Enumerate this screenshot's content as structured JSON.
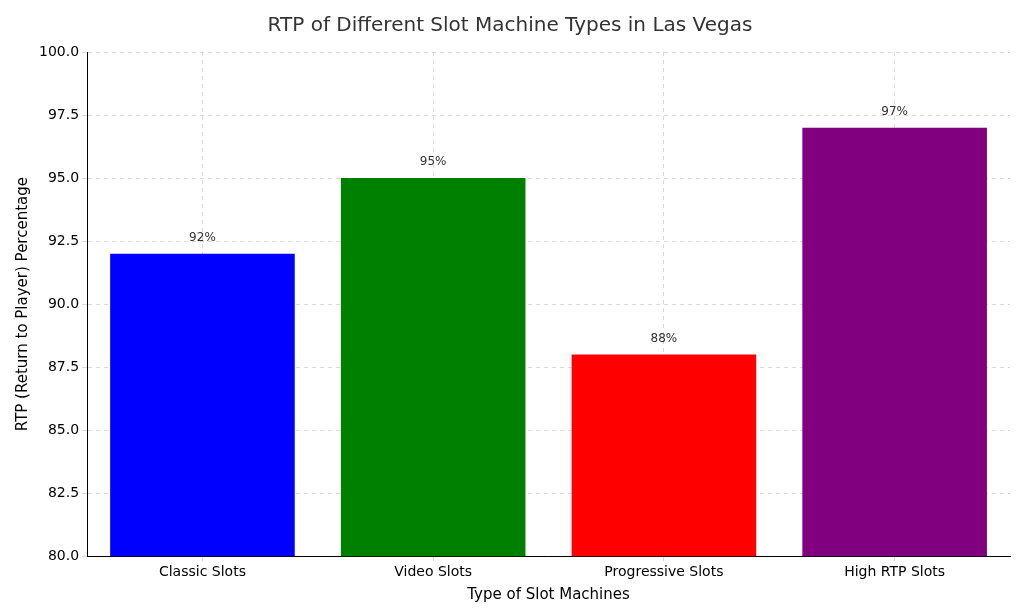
{
  "chart_data": {
    "type": "bar",
    "title": "RTP of Different Slot Machine Types in Las Vegas",
    "x_label": "Type of Slot Machines",
    "y_label": "RTP (Return to Player) Percentage",
    "categories": [
      "Classic Slots",
      "Video Slots",
      "Progressive Slots",
      "High RTP Slots"
    ],
    "values": [
      92,
      95,
      88,
      97
    ],
    "value_labels": [
      "92%",
      "95%",
      "88%",
      "97%"
    ],
    "colors": [
      "#0000ff",
      "#008000",
      "#ff0000",
      "#800080"
    ],
    "ylim": [
      80,
      100
    ],
    "yticks": [
      {
        "value": 80,
        "label": "80.0"
      },
      82.5,
      {
        "value": 85,
        "label": "85.0"
      },
      87.5,
      {
        "value": 90,
        "label": "90.0"
      },
      92.5,
      {
        "value": 95,
        "label": "95.0"
      },
      97.5,
      {
        "value": 100,
        "label": "100.0"
      }
    ],
    "grid": true,
    "data_labels": true
  }
}
